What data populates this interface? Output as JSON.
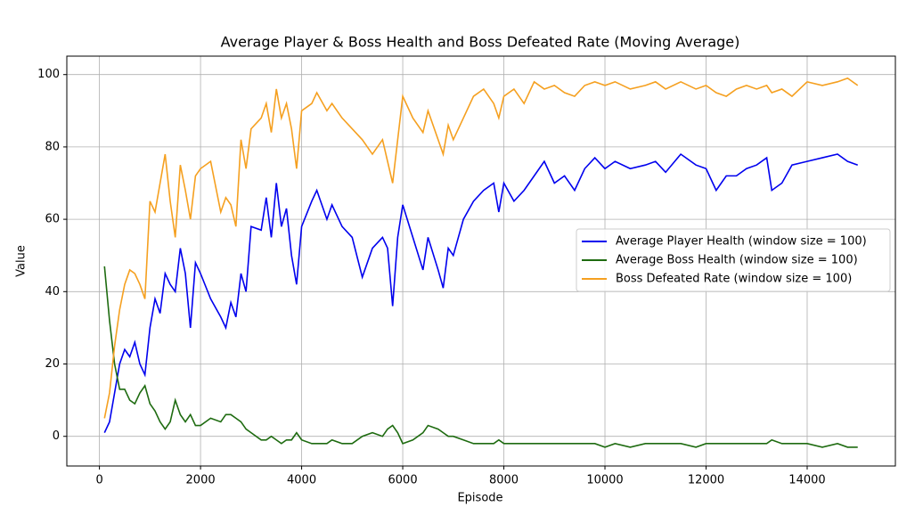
{
  "chart_data": {
    "type": "line",
    "title": "Average Player & Boss Health and Boss Defeated Rate (Moving Average)",
    "xlabel": "Episode",
    "ylabel": "Value",
    "x": [
      100,
      200,
      300,
      400,
      500,
      600,
      700,
      800,
      900,
      1000,
      1100,
      1200,
      1300,
      1400,
      1500,
      1600,
      1700,
      1800,
      1900,
      2000,
      2200,
      2400,
      2500,
      2600,
      2700,
      2800,
      2900,
      3000,
      3200,
      3300,
      3400,
      3500,
      3600,
      3700,
      3800,
      3900,
      4000,
      4200,
      4300,
      4500,
      4600,
      4800,
      5000,
      5200,
      5400,
      5600,
      5700,
      5800,
      5900,
      6000,
      6200,
      6400,
      6500,
      6700,
      6800,
      6900,
      7000,
      7200,
      7400,
      7600,
      7800,
      7900,
      8000,
      8200,
      8400,
      8600,
      8800,
      9000,
      9200,
      9400,
      9600,
      9800,
      10000,
      10200,
      10500,
      10800,
      11000,
      11200,
      11500,
      11800,
      12000,
      12200,
      12400,
      12600,
      12800,
      13000,
      13200,
      13300,
      13500,
      13700,
      14000,
      14300,
      14600,
      14800,
      15000
    ],
    "series": [
      {
        "name": "Average Player Health (window size = 100)",
        "color": "#0000ee",
        "values": [
          1,
          4,
          12,
          20,
          24,
          22,
          26,
          20,
          17,
          30,
          38,
          34,
          45,
          42,
          40,
          52,
          45,
          30,
          48,
          45,
          38,
          33,
          30,
          37,
          33,
          45,
          40,
          58,
          57,
          66,
          55,
          70,
          58,
          63,
          50,
          42,
          58,
          65,
          68,
          60,
          64,
          58,
          55,
          44,
          52,
          55,
          52,
          36,
          55,
          64,
          55,
          46,
          55,
          46,
          41,
          52,
          50,
          60,
          65,
          68,
          70,
          62,
          70,
          65,
          68,
          72,
          76,
          70,
          72,
          68,
          74,
          77,
          74,
          76,
          74,
          75,
          76,
          73,
          78,
          75,
          74,
          68,
          72,
          72,
          74,
          75,
          77,
          68,
          70,
          75,
          76,
          77,
          78,
          76,
          75
        ]
      },
      {
        "name": "Average Boss Health (window size = 100)",
        "color": "#1e6b10",
        "values": [
          47,
          32,
          20,
          13,
          13,
          10,
          9,
          12,
          14,
          9,
          7,
          4,
          2,
          4,
          10,
          6,
          4,
          6,
          3,
          3,
          5,
          4,
          6,
          6,
          5,
          4,
          2,
          1,
          -1,
          -1,
          0,
          -1,
          -2,
          -1,
          -1,
          1,
          -1,
          -2,
          -2,
          -2,
          -1,
          -2,
          -2,
          0,
          1,
          0,
          2,
          3,
          1,
          -2,
          -1,
          1,
          3,
          2,
          1,
          0,
          0,
          -1,
          -2,
          -2,
          -2,
          -1,
          -2,
          -2,
          -2,
          -2,
          -2,
          -2,
          -2,
          -2,
          -2,
          -2,
          -3,
          -2,
          -3,
          -2,
          -2,
          -2,
          -2,
          -3,
          -2,
          -2,
          -2,
          -2,
          -2,
          -2,
          -2,
          -1,
          -2,
          -2,
          -2,
          -3,
          -2,
          -3,
          -3
        ]
      },
      {
        "name": "Boss Defeated Rate (window size = 100)",
        "color": "#f5a020",
        "values": [
          5,
          12,
          25,
          35,
          42,
          46,
          45,
          42,
          38,
          65,
          62,
          70,
          78,
          65,
          55,
          75,
          68,
          60,
          72,
          74,
          76,
          62,
          66,
          64,
          58,
          82,
          74,
          85,
          88,
          92,
          84,
          96,
          88,
          92,
          85,
          74,
          90,
          92,
          95,
          90,
          92,
          88,
          85,
          82,
          78,
          82,
          76,
          70,
          82,
          94,
          88,
          84,
          90,
          82,
          78,
          86,
          82,
          88,
          94,
          96,
          92,
          88,
          94,
          96,
          92,
          98,
          96,
          97,
          95,
          94,
          97,
          98,
          97,
          98,
          96,
          97,
          98,
          96,
          98,
          96,
          97,
          95,
          94,
          96,
          97,
          96,
          97,
          95,
          96,
          94,
          98,
          97,
          98,
          99,
          97
        ]
      }
    ],
    "xlim": [
      -645,
      15745
    ],
    "ylim": [
      -8.2,
      105.1
    ],
    "xticks": [
      0,
      2000,
      4000,
      6000,
      8000,
      10000,
      12000,
      14000
    ],
    "yticks": [
      0,
      20,
      40,
      60,
      80,
      100
    ],
    "grid": true,
    "legend": "right"
  }
}
